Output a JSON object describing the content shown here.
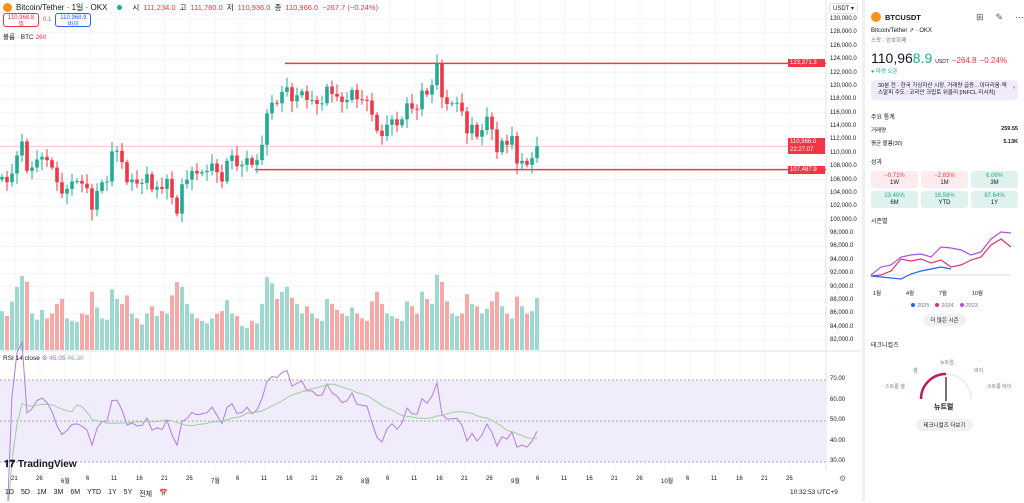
{
  "header": {
    "title": "Bitcoin/Tether · 1일 · OKX",
    "o_label": "시",
    "o": "111,234.0",
    "h_label": "고",
    "h": "111,780.0",
    "l_label": "저",
    "l": "110,936.0",
    "c_label": "종",
    "c": "110,966.0",
    "change": "−267.7 (−0.24%)",
    "sell_price": "110,968.8",
    "sell_label": "셀",
    "spread": "0.1",
    "buy_price": "110,968.9",
    "buy_label": "바이",
    "volume_label": "볼륨 · BTC",
    "volume_value": "260"
  },
  "price_axis": {
    "currency": "USDT",
    "ticks": [
      "130,000.0",
      "128,000.0",
      "126,000.0",
      "124,000.0",
      "122,000.0",
      "120,000.0",
      "118,000.0",
      "116,000.0",
      "114,000.0",
      "112,000.0",
      "110,000.0",
      "108,000.0",
      "106,000.0",
      "104,000.0",
      "102,000.0",
      "100,000.0",
      "98,000.0",
      "96,000.0",
      "94,000.0",
      "92,000.0",
      "90,000.0",
      "88,000.0",
      "86,000.0",
      "84,000.0",
      "82,000.0"
    ],
    "resistance": "123,371.3",
    "support": "107,487.9",
    "current": "110,966.0",
    "countdown": "22:27:07"
  },
  "levels": {
    "resistance": 123371.3,
    "support": 107487.9,
    "current": 110966
  },
  "rsi": {
    "label": "RSI 14 close",
    "value": "45.05",
    "ma": "46.30",
    "ticks": [
      "70.00",
      "60.00",
      "50.00",
      "40.00",
      "30.00"
    ]
  },
  "x_axis": [
    "21",
    "26",
    "6월",
    "6",
    "11",
    "16",
    "21",
    "26",
    "7월",
    "6",
    "11",
    "16",
    "21",
    "26",
    "8월",
    "6",
    "11",
    "16",
    "21",
    "26",
    "9월",
    "6",
    "11",
    "16",
    "21",
    "26",
    "10월",
    "6",
    "11",
    "16",
    "21",
    "26"
  ],
  "brand": "TradingView",
  "toolbar": {
    "ranges": [
      "1D",
      "5D",
      "1M",
      "3M",
      "6M",
      "YTD",
      "1Y",
      "5Y",
      "전체"
    ],
    "time": "10:32:53 UTC+9"
  },
  "chart_data": {
    "type": "candlestick",
    "start": "2025-05-18",
    "closes": [
      106.4,
      105.6,
      106.9,
      109.6,
      111.7,
      107.3,
      107.8,
      109.0,
      109.4,
      108.9,
      107.8,
      105.6,
      103.9,
      104.6,
      105.7,
      105.8,
      105.4,
      104.7,
      101.5,
      104.3,
      105.6,
      105.7,
      110.2,
      110.3,
      108.6,
      105.6,
      106.0,
      105.4,
      105.5,
      106.8,
      104.5,
      104.9,
      104.6,
      106.1,
      103.3,
      100.9,
      105.3,
      106.0,
      107.3,
      106.9,
      107.1,
      107.3,
      108.4,
      107.1,
      105.7,
      108.8,
      109.6,
      108.0,
      108.2,
      109.2,
      108.2,
      108.9,
      111.2,
      115.9,
      117.5,
      117.4,
      119.1,
      119.8,
      117.7,
      118.6,
      119.2,
      117.9,
      117.9,
      117.3,
      117.4,
      119.9,
      118.8,
      118.4,
      117.6,
      117.9,
      119.4,
      118.0,
      117.9,
      117.8,
      115.7,
      113.3,
      112.5,
      114.2,
      115.0,
      114.1,
      115.0,
      117.4,
      116.6,
      116.5,
      119.3,
      118.7,
      120.1,
      123.3,
      118.3,
      117.3,
      117.4,
      117.5,
      116.2,
      112.9,
      114.2,
      112.4,
      113.4,
      115.4,
      113.5,
      110.1,
      111.8,
      111.2,
      112.5,
      108.4,
      108.8,
      108.2,
      109.2,
      110.97
    ],
    "volumes": [
      320,
      280,
      400,
      520,
      610,
      560,
      300,
      250,
      330,
      260,
      300,
      380,
      420,
      260,
      240,
      230,
      300,
      290,
      480,
      350,
      260,
      250,
      500,
      420,
      380,
      450,
      300,
      260,
      210,
      300,
      360,
      280,
      320,
      300,
      450,
      560,
      520,
      380,
      300,
      260,
      240,
      220,
      260,
      300,
      320,
      410,
      300,
      280,
      200,
      180,
      240,
      220,
      380,
      600,
      550,
      420,
      480,
      520,
      430,
      380,
      300,
      360,
      300,
      260,
      240,
      420,
      380,
      330,
      300,
      280,
      350,
      300,
      260,
      240,
      400,
      480,
      380,
      300,
      280,
      260,
      240,
      400,
      360,
      300,
      480,
      420,
      380,
      620,
      560,
      400,
      300,
      280,
      300,
      460,
      380,
      360,
      300,
      340,
      400,
      480,
      360,
      300,
      260,
      440,
      360,
      300,
      320,
      430
    ],
    "unit": "thousand USDT"
  },
  "side": {
    "symbol": "BTCUSDT",
    "name": "Bitcoin/Tether",
    "exchange": "OKX",
    "type": "스팟 · 암호화폐",
    "price_main": "110,96",
    "price_last": "8.9",
    "currency": "USDT",
    "change": "−264.8",
    "change_pct": "−0.24%",
    "market": "마켓 오픈",
    "news": "30분 전 · 한국 가상자산 시장, 거래량 급증…이더리움·엑스알피 주도 : 코리안 크립토 위클리 [INFCL 리서치]",
    "stats_title": "주요 통계",
    "stats": [
      {
        "k": "거래량",
        "v": "259.55"
      },
      {
        "k": "평균 볼륨(30)",
        "v": "5.13K"
      }
    ],
    "perf_title": "성과",
    "perf": [
      {
        "v": "−0.71%",
        "p": "1W",
        "pos": false
      },
      {
        "v": "−2.83%",
        "p": "1M",
        "pos": false
      },
      {
        "v": "6.06%",
        "p": "3M",
        "pos": true
      },
      {
        "v": "23.40%",
        "p": "6M",
        "pos": true
      },
      {
        "v": "18.58%",
        "p": "YTD",
        "pos": true
      },
      {
        "v": "87.64%",
        "p": "1Y",
        "pos": true
      }
    ],
    "season_title": "시즌별",
    "season_x": [
      "1월",
      "4월",
      "7월",
      "10월"
    ],
    "season_legend": [
      {
        "y": "2025",
        "c": "#2962ff"
      },
      {
        "y": "2024",
        "c": "#e0316b"
      },
      {
        "y": "2023",
        "c": "#b04de0"
      }
    ],
    "season_btn": "더 많은 시즌",
    "tech_title": "테크니컬즈",
    "gauge": [
      "스트롱 셀",
      "셀",
      "뉴트럴",
      "바이",
      "스트롱 바이"
    ],
    "tech_value": "뉴트럴",
    "tech_btn": "테크니컬즈 더보기"
  }
}
